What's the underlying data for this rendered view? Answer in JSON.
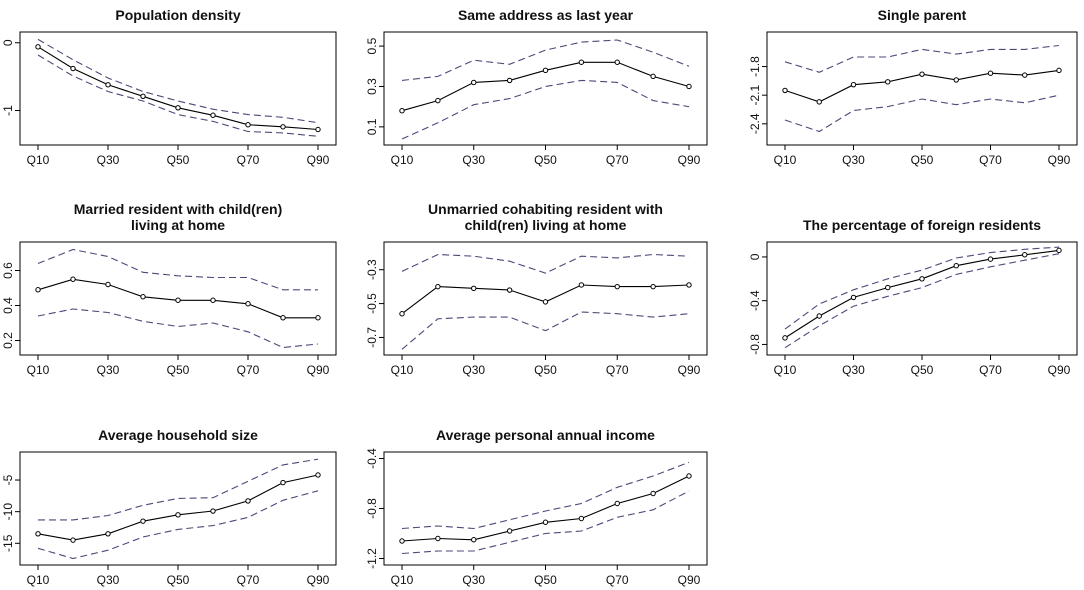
{
  "chart_data": [
    {
      "type": "line",
      "title": [
        "Population density"
      ],
      "x": [
        "Q10",
        "Q20",
        "Q30",
        "Q40",
        "Q50",
        "Q60",
        "Q70",
        "Q80",
        "Q90"
      ],
      "xticks": [
        "Q10",
        "Q30",
        "Q50",
        "Q70",
        "Q90"
      ],
      "ylim": [
        -1.45,
        0.1
      ],
      "yticks": [
        -1.0,
        0.0
      ],
      "series": [
        {
          "name": "upper",
          "style": "dashed",
          "color": "#4a4a7a",
          "values": [
            0.05,
            -0.25,
            -0.52,
            -0.72,
            -0.86,
            -0.98,
            -1.06,
            -1.1,
            -1.18
          ]
        },
        {
          "name": "estimate",
          "style": "solid",
          "color": "#000000",
          "markers": true,
          "values": [
            -0.06,
            -0.38,
            -0.62,
            -0.79,
            -0.96,
            -1.07,
            -1.21,
            -1.24,
            -1.28
          ]
        },
        {
          "name": "lower",
          "style": "dashed",
          "color": "#4a4a7a",
          "values": [
            -0.18,
            -0.49,
            -0.72,
            -0.86,
            -1.06,
            -1.16,
            -1.31,
            -1.33,
            -1.38
          ]
        }
      ]
    },
    {
      "type": "line",
      "title": [
        "Same address as last year"
      ],
      "x": [
        "Q10",
        "Q20",
        "Q30",
        "Q40",
        "Q50",
        "Q60",
        "Q70",
        "Q80",
        "Q90"
      ],
      "xticks": [
        "Q10",
        "Q30",
        "Q50",
        "Q70",
        "Q90"
      ],
      "ylim": [
        0.03,
        0.55
      ],
      "yticks": [
        0.1,
        0.3,
        0.5
      ],
      "series": [
        {
          "name": "upper",
          "style": "dashed",
          "color": "#4a4a7a",
          "values": [
            0.33,
            0.35,
            0.43,
            0.41,
            0.48,
            0.52,
            0.53,
            0.47,
            0.4
          ]
        },
        {
          "name": "estimate",
          "style": "solid",
          "color": "#000000",
          "markers": true,
          "values": [
            0.18,
            0.23,
            0.32,
            0.33,
            0.38,
            0.42,
            0.42,
            0.35,
            0.3
          ]
        },
        {
          "name": "lower",
          "style": "dashed",
          "color": "#4a4a7a",
          "values": [
            0.04,
            0.12,
            0.21,
            0.24,
            0.3,
            0.33,
            0.32,
            0.23,
            0.2
          ]
        }
      ]
    },
    {
      "type": "line",
      "title": [
        "Single parent"
      ],
      "x": [
        "Q10",
        "Q20",
        "Q30",
        "Q40",
        "Q50",
        "Q60",
        "Q70",
        "Q80",
        "Q90"
      ],
      "xticks": [
        "Q10",
        "Q30",
        "Q50",
        "Q70",
        "Q90"
      ],
      "ylim": [
        -2.58,
        -1.48
      ],
      "yticks": [
        -2.4,
        -2.1,
        -1.8
      ],
      "series": [
        {
          "name": "upper",
          "style": "dashed",
          "color": "#4a4a7a",
          "values": [
            -1.75,
            -1.86,
            -1.7,
            -1.7,
            -1.62,
            -1.67,
            -1.62,
            -1.62,
            -1.58
          ]
        },
        {
          "name": "estimate",
          "style": "solid",
          "color": "#000000",
          "markers": true,
          "values": [
            -2.05,
            -2.17,
            -1.99,
            -1.96,
            -1.88,
            -1.94,
            -1.87,
            -1.89,
            -1.84
          ]
        },
        {
          "name": "lower",
          "style": "dashed",
          "color": "#4a4a7a",
          "values": [
            -2.36,
            -2.48,
            -2.26,
            -2.22,
            -2.14,
            -2.2,
            -2.14,
            -2.18,
            -2.1
          ]
        }
      ]
    },
    {
      "type": "line",
      "title": [
        "Married resident with child(ren)",
        "living at home"
      ],
      "x": [
        "Q10",
        "Q20",
        "Q30",
        "Q40",
        "Q50",
        "Q60",
        "Q70",
        "Q80",
        "Q90"
      ],
      "xticks": [
        "Q10",
        "Q30",
        "Q50",
        "Q70",
        "Q90"
      ],
      "ylim": [
        0.14,
        0.74
      ],
      "yticks": [
        0.2,
        0.4,
        0.6
      ],
      "series": [
        {
          "name": "upper",
          "style": "dashed",
          "color": "#4a4a7a",
          "values": [
            0.64,
            0.72,
            0.68,
            0.59,
            0.57,
            0.56,
            0.56,
            0.49,
            0.49
          ]
        },
        {
          "name": "estimate",
          "style": "solid",
          "color": "#000000",
          "markers": true,
          "values": [
            0.49,
            0.55,
            0.52,
            0.45,
            0.43,
            0.43,
            0.41,
            0.33,
            0.33
          ]
        },
        {
          "name": "lower",
          "style": "dashed",
          "color": "#4a4a7a",
          "values": [
            0.34,
            0.38,
            0.36,
            0.31,
            0.28,
            0.3,
            0.25,
            0.16,
            0.18
          ]
        }
      ]
    },
    {
      "type": "line",
      "title": [
        "Unmarried cohabiting resident with",
        "child(ren) living at home"
      ],
      "x": [
        "Q10",
        "Q20",
        "Q30",
        "Q40",
        "Q50",
        "Q60",
        "Q70",
        "Q80",
        "Q90"
      ],
      "xticks": [
        "Q10",
        "Q30",
        "Q50",
        "Q70",
        "Q90"
      ],
      "ylim": [
        -0.78,
        -0.16
      ],
      "yticks": [
        -0.7,
        -0.5,
        -0.3
      ],
      "series": [
        {
          "name": "upper",
          "style": "dashed",
          "color": "#4a4a7a",
          "values": [
            -0.31,
            -0.21,
            -0.22,
            -0.25,
            -0.32,
            -0.22,
            -0.23,
            -0.21,
            -0.22
          ]
        },
        {
          "name": "estimate",
          "style": "solid",
          "color": "#000000",
          "markers": true,
          "values": [
            -0.56,
            -0.4,
            -0.41,
            -0.42,
            -0.49,
            -0.39,
            -0.4,
            -0.4,
            -0.39
          ]
        },
        {
          "name": "lower",
          "style": "dashed",
          "color": "#4a4a7a",
          "values": [
            -0.77,
            -0.59,
            -0.58,
            -0.58,
            -0.66,
            -0.55,
            -0.56,
            -0.58,
            -0.56
          ]
        }
      ]
    },
    {
      "type": "line",
      "title": [
        "The percentage of foreign residents"
      ],
      "x": [
        "Q10",
        "Q20",
        "Q30",
        "Q40",
        "Q50",
        "Q60",
        "Q70",
        "Q80",
        "Q90"
      ],
      "xticks": [
        "Q10",
        "Q30",
        "Q50",
        "Q70",
        "Q90"
      ],
      "ylim": [
        -0.86,
        0.1
      ],
      "yticks": [
        -0.8,
        -0.4,
        0.0
      ],
      "series": [
        {
          "name": "upper",
          "style": "dashed",
          "color": "#4a4a7a",
          "values": [
            -0.66,
            -0.43,
            -0.3,
            -0.2,
            -0.12,
            -0.01,
            0.04,
            0.07,
            0.09
          ]
        },
        {
          "name": "estimate",
          "style": "solid",
          "color": "#000000",
          "markers": true,
          "values": [
            -0.74,
            -0.54,
            -0.37,
            -0.28,
            -0.2,
            -0.08,
            -0.02,
            0.02,
            0.06
          ]
        },
        {
          "name": "lower",
          "style": "dashed",
          "color": "#4a4a7a",
          "values": [
            -0.83,
            -0.63,
            -0.45,
            -0.36,
            -0.28,
            -0.16,
            -0.09,
            -0.03,
            0.03
          ]
        }
      ]
    },
    {
      "type": "line",
      "title": [
        "Average household size"
      ],
      "x": [
        "Q10",
        "Q20",
        "Q30",
        "Q40",
        "Q50",
        "Q60",
        "Q70",
        "Q80",
        "Q90"
      ],
      "xticks": [
        "Q10",
        "Q30",
        "Q50",
        "Q70",
        "Q90"
      ],
      "ylim": [
        -17.8,
        -1.2
      ],
      "yticks": [
        -15,
        -10,
        -5
      ],
      "series": [
        {
          "name": "upper",
          "style": "dashed",
          "color": "#4a4a7a",
          "values": [
            -11.3,
            -11.3,
            -10.6,
            -9.0,
            -7.9,
            -7.8,
            -5.2,
            -2.6,
            -1.7
          ]
        },
        {
          "name": "estimate",
          "style": "solid",
          "color": "#000000",
          "markers": true,
          "values": [
            -13.5,
            -14.5,
            -13.5,
            -11.5,
            -10.5,
            -9.9,
            -8.3,
            -5.4,
            -4.2
          ]
        },
        {
          "name": "lower",
          "style": "dashed",
          "color": "#4a4a7a",
          "values": [
            -15.8,
            -17.4,
            -16.1,
            -14.0,
            -12.8,
            -12.2,
            -10.9,
            -8.2,
            -6.7
          ]
        }
      ]
    },
    {
      "type": "line",
      "title": [
        "Average personal annual income"
      ],
      "x": [
        "Q10",
        "Q20",
        "Q30",
        "Q40",
        "Q50",
        "Q60",
        "Q70",
        "Q80",
        "Q90"
      ],
      "xticks": [
        "Q10",
        "Q30",
        "Q50",
        "Q70",
        "Q90"
      ],
      "ylim": [
        -1.22,
        -0.38
      ],
      "yticks": [
        -1.2,
        -0.8,
        -0.4
      ],
      "series": [
        {
          "name": "upper",
          "style": "dashed",
          "color": "#4a4a7a",
          "values": [
            -0.96,
            -0.94,
            -0.96,
            -0.89,
            -0.82,
            -0.76,
            -0.63,
            -0.54,
            -0.43
          ]
        },
        {
          "name": "estimate",
          "style": "solid",
          "color": "#000000",
          "markers": true,
          "values": [
            -1.06,
            -1.04,
            -1.05,
            -0.98,
            -0.91,
            -0.88,
            -0.76,
            -0.68,
            -0.54
          ]
        },
        {
          "name": "lower",
          "style": "dashed",
          "color": "#4a4a7a",
          "values": [
            -1.16,
            -1.14,
            -1.14,
            -1.07,
            -1.0,
            -0.98,
            -0.87,
            -0.81,
            -0.66
          ]
        }
      ]
    }
  ]
}
